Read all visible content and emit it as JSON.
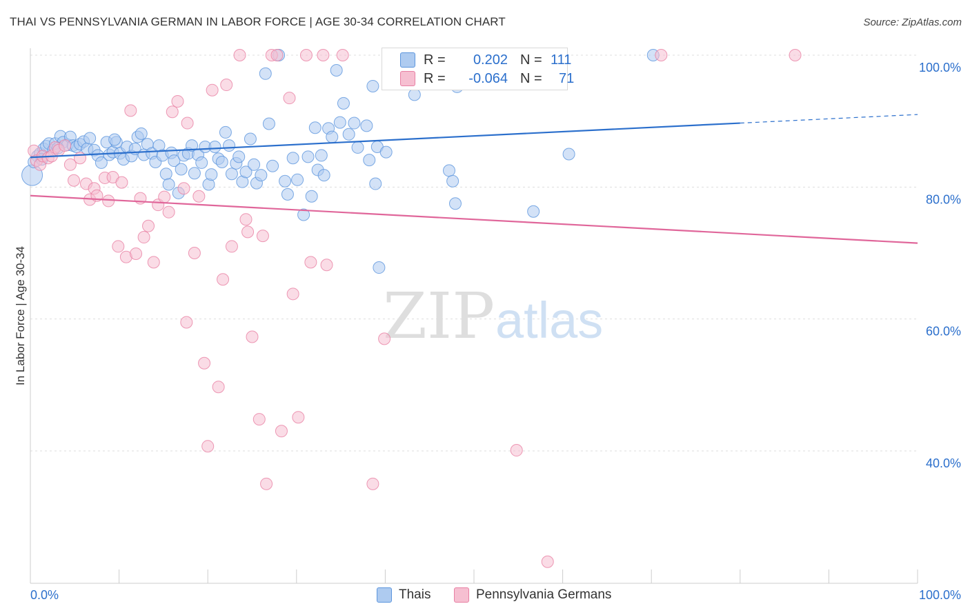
{
  "title": "THAI VS PENNSYLVANIA GERMAN IN LABOR FORCE | AGE 30-34 CORRELATION CHART",
  "source": "Source: ZipAtlas.com",
  "watermark": {
    "zip": "ZIP",
    "atlas": "atlas"
  },
  "legend": {
    "rows": [
      {
        "r_label": "R =",
        "r_value": "0.202",
        "n_label": "N =",
        "n_value": "111"
      },
      {
        "r_label": "R =",
        "r_value": "-0.064",
        "n_label": "N =",
        "n_value": "71"
      }
    ]
  },
  "bottom_legend": [
    "Thais",
    "Pennsylvania Germans"
  ],
  "colors": {
    "thais_fill": "#aecbf0",
    "thais_stroke": "#5b95dd",
    "thais_line": "#2b6fcc",
    "pg_fill": "#f6bfd1",
    "pg_stroke": "#e87fa3",
    "pg_line": "#e0669a",
    "tick_label": "#2b6fcc",
    "grid": "#dddddd"
  },
  "chart_data": {
    "type": "scatter",
    "title": "THAI VS PENNSYLVANIA GERMAN IN LABOR FORCE | AGE 30-34 CORRELATION CHART",
    "xlabel": "",
    "ylabel": "In Labor Force | Age 30-34",
    "xlim": [
      0,
      100
    ],
    "ylim": [
      20,
      103
    ],
    "x_tick_labels": [
      {
        "x": 0,
        "label": "0.0%"
      },
      {
        "x": 100,
        "label": "100.0%"
      }
    ],
    "y_tick_labels": [
      {
        "y": 100,
        "label": "100.0%"
      },
      {
        "y": 80,
        "label": "80.0%"
      },
      {
        "y": 60,
        "label": "60.0%"
      },
      {
        "y": 40,
        "label": "40.0%"
      }
    ],
    "grid": true,
    "legend_position": "top-center",
    "series": [
      {
        "name": "Thais",
        "R": 0.202,
        "N": 111,
        "trend": {
          "x0": 0,
          "y0": 84.5,
          "x1": 80,
          "y1": 89.7,
          "dash_to": {
            "x": 100,
            "y": 91.0
          }
        },
        "points": [
          [
            0.2,
            81.8
          ],
          [
            0.8,
            84.7
          ],
          [
            1.1,
            85.1
          ],
          [
            1.5,
            85.8
          ],
          [
            1.8,
            86.2
          ],
          [
            2.1,
            86.6
          ],
          [
            2.6,
            85.6
          ],
          [
            2.8,
            86.6
          ],
          [
            3.4,
            87.7
          ],
          [
            3.7,
            86.8
          ],
          [
            4.2,
            86.4
          ],
          [
            4.5,
            87.6
          ],
          [
            4.8,
            86.3
          ],
          [
            5.2,
            86.1
          ],
          [
            5.6,
            86.5
          ],
          [
            6.0,
            86.9
          ],
          [
            6.4,
            85.8
          ],
          [
            6.7,
            87.4
          ],
          [
            7.2,
            85.6
          ],
          [
            7.6,
            84.8
          ],
          [
            8.0,
            83.7
          ],
          [
            8.6,
            86.8
          ],
          [
            8.9,
            84.9
          ],
          [
            9.3,
            85.3
          ],
          [
            9.7,
            86.8
          ],
          [
            10.1,
            85.1
          ],
          [
            10.5,
            84.2
          ],
          [
            10.9,
            86.1
          ],
          [
            11.4,
            84.7
          ],
          [
            11.8,
            85.8
          ],
          [
            12.1,
            87.6
          ],
          [
            12.5,
            88.1
          ],
          [
            12.8,
            84.9
          ],
          [
            13.2,
            86.5
          ],
          [
            13.7,
            85.1
          ],
          [
            14.1,
            83.8
          ],
          [
            14.5,
            86.3
          ],
          [
            14.9,
            84.8
          ],
          [
            15.3,
            82.0
          ],
          [
            15.6,
            80.4
          ],
          [
            15.9,
            85.2
          ],
          [
            16.2,
            84.0
          ],
          [
            16.7,
            79.1
          ],
          [
            17.0,
            82.7
          ],
          [
            17.3,
            84.8
          ],
          [
            17.8,
            85.1
          ],
          [
            18.2,
            86.3
          ],
          [
            18.5,
            82.1
          ],
          [
            18.9,
            84.9
          ],
          [
            19.3,
            83.7
          ],
          [
            19.7,
            86.1
          ],
          [
            20.1,
            80.4
          ],
          [
            20.4,
            81.9
          ],
          [
            20.8,
            86.1
          ],
          [
            21.2,
            84.3
          ],
          [
            21.6,
            83.8
          ],
          [
            22.0,
            88.3
          ],
          [
            22.4,
            86.3
          ],
          [
            22.7,
            82.0
          ],
          [
            23.2,
            83.6
          ],
          [
            23.5,
            84.6
          ],
          [
            23.9,
            80.8
          ],
          [
            24.3,
            82.3
          ],
          [
            24.8,
            87.3
          ],
          [
            25.2,
            83.4
          ],
          [
            25.5,
            80.6
          ],
          [
            26.0,
            81.8
          ],
          [
            26.5,
            97.2
          ],
          [
            26.9,
            89.6
          ],
          [
            27.3,
            83.2
          ],
          [
            28.0,
            100.0
          ],
          [
            28.7,
            80.9
          ],
          [
            29.0,
            78.9
          ],
          [
            29.6,
            84.4
          ],
          [
            30.1,
            81.1
          ],
          [
            30.8,
            75.8
          ],
          [
            31.3,
            84.6
          ],
          [
            31.7,
            78.6
          ],
          [
            32.1,
            89.0
          ],
          [
            32.4,
            82.6
          ],
          [
            32.8,
            84.8
          ],
          [
            33.1,
            81.8
          ],
          [
            33.6,
            88.9
          ],
          [
            34.0,
            87.6
          ],
          [
            34.5,
            97.7
          ],
          [
            34.9,
            89.8
          ],
          [
            35.3,
            92.7
          ],
          [
            35.9,
            88.0
          ],
          [
            36.5,
            89.7
          ],
          [
            36.9,
            86.0
          ],
          [
            37.9,
            89.3
          ],
          [
            38.2,
            84.1
          ],
          [
            38.6,
            95.3
          ],
          [
            38.9,
            80.5
          ],
          [
            39.1,
            86.1
          ],
          [
            40.1,
            85.3
          ],
          [
            39.3,
            67.8
          ],
          [
            41.3,
            100.0
          ],
          [
            43.3,
            94.0
          ],
          [
            47.2,
            82.5
          ],
          [
            47.6,
            80.9
          ],
          [
            47.9,
            77.5
          ],
          [
            48.1,
            95.2
          ],
          [
            48.9,
            100.0
          ],
          [
            56.7,
            76.3
          ],
          [
            60.7,
            85.0
          ],
          [
            70.2,
            100.0
          ],
          [
            0.4,
            83.8
          ],
          [
            1.3,
            84.2
          ],
          [
            3.1,
            85.9
          ],
          [
            9.5,
            87.2
          ]
        ]
      },
      {
        "name": "Pennsylvania Germans",
        "R": -0.064,
        "N": 71,
        "trend": {
          "x0": 0,
          "y0": 78.7,
          "x1": 100,
          "y1": 71.5
        },
        "points": [
          [
            0.4,
            85.5
          ],
          [
            0.7,
            84.0
          ],
          [
            1.1,
            83.4
          ],
          [
            1.4,
            84.7
          ],
          [
            2.0,
            84.4
          ],
          [
            2.4,
            84.7
          ],
          [
            2.8,
            86.0
          ],
          [
            3.2,
            85.6
          ],
          [
            3.9,
            86.3
          ],
          [
            4.5,
            83.4
          ],
          [
            4.9,
            81.0
          ],
          [
            5.6,
            84.4
          ],
          [
            6.3,
            80.5
          ],
          [
            6.7,
            78.1
          ],
          [
            7.2,
            79.8
          ],
          [
            7.5,
            78.7
          ],
          [
            8.4,
            81.4
          ],
          [
            8.8,
            77.9
          ],
          [
            9.3,
            81.5
          ],
          [
            9.9,
            71.0
          ],
          [
            10.3,
            80.7
          ],
          [
            10.8,
            69.4
          ],
          [
            11.3,
            91.6
          ],
          [
            11.9,
            69.9
          ],
          [
            12.4,
            78.3
          ],
          [
            12.8,
            72.4
          ],
          [
            13.3,
            74.1
          ],
          [
            13.9,
            68.6
          ],
          [
            14.4,
            77.3
          ],
          [
            15.1,
            78.5
          ],
          [
            15.6,
            76.2
          ],
          [
            16.0,
            91.4
          ],
          [
            16.6,
            93.0
          ],
          [
            17.3,
            79.8
          ],
          [
            17.7,
            89.7
          ],
          [
            17.6,
            59.5
          ],
          [
            18.5,
            70.0
          ],
          [
            19.0,
            78.6
          ],
          [
            19.6,
            53.3
          ],
          [
            20.0,
            40.7
          ],
          [
            20.5,
            94.7
          ],
          [
            21.2,
            49.7
          ],
          [
            21.7,
            66.0
          ],
          [
            22.1,
            95.5
          ],
          [
            22.7,
            71.0
          ],
          [
            23.6,
            100.0
          ],
          [
            24.3,
            75.1
          ],
          [
            24.5,
            73.2
          ],
          [
            25.0,
            57.3
          ],
          [
            25.8,
            44.8
          ],
          [
            26.2,
            72.6
          ],
          [
            26.6,
            35.0
          ],
          [
            27.2,
            100.0
          ],
          [
            27.8,
            100.0
          ],
          [
            28.3,
            43.0
          ],
          [
            29.2,
            93.5
          ],
          [
            29.6,
            63.8
          ],
          [
            30.2,
            45.1
          ],
          [
            31.1,
            100.0
          ],
          [
            31.6,
            68.6
          ],
          [
            33.0,
            100.0
          ],
          [
            33.4,
            68.2
          ],
          [
            35.2,
            100.0
          ],
          [
            38.6,
            35.0
          ],
          [
            39.9,
            57.0
          ],
          [
            45.7,
            100.0
          ],
          [
            54.8,
            40.1
          ],
          [
            58.3,
            23.2
          ],
          [
            59.0,
            100.0
          ],
          [
            71.1,
            100.0
          ],
          [
            86.2,
            100.0
          ]
        ]
      }
    ]
  }
}
